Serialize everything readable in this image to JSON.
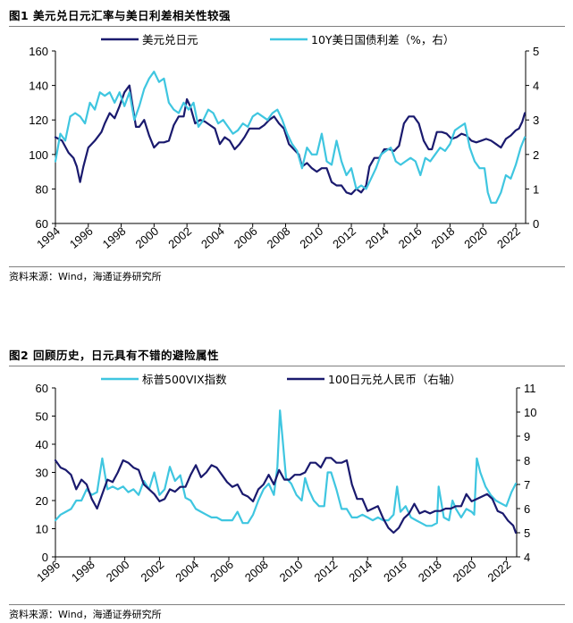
{
  "chart_data": [
    {
      "type": "line",
      "title": "图1  美元兑日元汇率与美日利差相关性较强",
      "source": "资料来源：Wind，海通证券研究所",
      "xlabel": "",
      "x_tick_labels": [
        "1994",
        "1996",
        "1998",
        "2000",
        "2002",
        "2004",
        "2006",
        "2008",
        "2010",
        "2012",
        "2014",
        "2016",
        "2018",
        "2020",
        "2022"
      ],
      "xlim": [
        1994,
        2022.6
      ],
      "y_left": {
        "lim": [
          60,
          160
        ],
        "ticks": [
          60,
          80,
          100,
          120,
          140,
          160
        ]
      },
      "y_right": {
        "lim": [
          0,
          5
        ],
        "ticks": [
          0,
          1,
          2,
          3,
          4,
          5
        ]
      },
      "legend_position": "top",
      "series": [
        {
          "name": "美元兑日元",
          "axis": "left",
          "color": "#1a1a6e",
          "x": [
            1994.0,
            1994.4,
            1994.8,
            1995.1,
            1995.3,
            1995.5,
            1995.7,
            1996.0,
            1996.4,
            1996.8,
            1997.0,
            1997.3,
            1997.6,
            1997.9,
            1998.2,
            1998.5,
            1998.7,
            1998.9,
            1999.1,
            1999.4,
            1999.7,
            2000.0,
            2000.3,
            2000.6,
            2000.9,
            2001.2,
            2001.5,
            2001.8,
            2002.0,
            2002.2,
            2002.5,
            2002.8,
            2003.1,
            2003.4,
            2003.7,
            2004.0,
            2004.3,
            2004.6,
            2004.9,
            2005.2,
            2005.5,
            2005.8,
            2006.1,
            2006.4,
            2006.7,
            2007.0,
            2007.3,
            2007.6,
            2007.9,
            2008.2,
            2008.5,
            2008.8,
            2009.0,
            2009.3,
            2009.6,
            2009.9,
            2010.2,
            2010.5,
            2010.8,
            2011.1,
            2011.4,
            2011.7,
            2012.0,
            2012.3,
            2012.6,
            2012.9,
            2013.1,
            2013.4,
            2013.7,
            2014.0,
            2014.3,
            2014.6,
            2014.9,
            2015.2,
            2015.5,
            2015.8,
            2016.1,
            2016.4,
            2016.7,
            2016.9,
            2017.2,
            2017.5,
            2017.8,
            2018.1,
            2018.4,
            2018.7,
            2019.0,
            2019.3,
            2019.6,
            2019.9,
            2020.2,
            2020.5,
            2020.8,
            2021.1,
            2021.4,
            2021.7,
            2022.0,
            2022.2,
            2022.4,
            2022.55
          ],
          "y": [
            110,
            108,
            101,
            98,
            93,
            84,
            93,
            104,
            108,
            113,
            118,
            124,
            121,
            128,
            136,
            140,
            128,
            116,
            116,
            120,
            111,
            104,
            107,
            107,
            108,
            117,
            122,
            122,
            132,
            128,
            118,
            120,
            119,
            117,
            115,
            106,
            110,
            108,
            103,
            106,
            110,
            115,
            115,
            115,
            117,
            120,
            122,
            118,
            115,
            106,
            103,
            100,
            93,
            95,
            92,
            90,
            92,
            92,
            84,
            82,
            82,
            78,
            77,
            80,
            78,
            82,
            93,
            98,
            98,
            103,
            103,
            102,
            105,
            118,
            122,
            122,
            118,
            108,
            103,
            103,
            113,
            113,
            112,
            109,
            110,
            112,
            111,
            108,
            107,
            108,
            109,
            108,
            106,
            104,
            109,
            111,
            114,
            115,
            119,
            124
          ]
        },
        {
          "name": "10Y美日国债利差（%，右）",
          "axis": "right",
          "color": "#3fc6e0",
          "x": [
            1994.0,
            1994.3,
            1994.6,
            1994.9,
            1995.2,
            1995.5,
            1995.8,
            1996.1,
            1996.4,
            1996.7,
            1997.0,
            1997.3,
            1997.6,
            1997.9,
            1998.2,
            1998.5,
            1998.8,
            1999.1,
            1999.4,
            1999.7,
            2000.0,
            2000.3,
            2000.6,
            2000.9,
            2001.2,
            2001.5,
            2001.8,
            2002.1,
            2002.4,
            2002.7,
            2003.0,
            2003.3,
            2003.6,
            2003.9,
            2004.2,
            2004.5,
            2004.8,
            2005.1,
            2005.4,
            2005.7,
            2006.0,
            2006.3,
            2006.6,
            2006.9,
            2007.2,
            2007.5,
            2007.8,
            2008.1,
            2008.4,
            2008.7,
            2009.0,
            2009.3,
            2009.6,
            2009.9,
            2010.2,
            2010.5,
            2010.8,
            2011.1,
            2011.4,
            2011.7,
            2012.0,
            2012.3,
            2012.6,
            2012.9,
            2013.2,
            2013.5,
            2013.8,
            2014.1,
            2014.4,
            2014.7,
            2015.0,
            2015.3,
            2015.6,
            2015.9,
            2016.2,
            2016.5,
            2016.8,
            2017.1,
            2017.4,
            2017.7,
            2018.0,
            2018.3,
            2018.6,
            2018.9,
            2019.2,
            2019.5,
            2019.8,
            2020.1,
            2020.3,
            2020.5,
            2020.8,
            2021.1,
            2021.4,
            2021.7,
            2022.0,
            2022.3,
            2022.55
          ],
          "y": [
            1.8,
            2.6,
            2.4,
            3.1,
            3.2,
            3.1,
            2.9,
            3.5,
            3.3,
            3.8,
            3.7,
            3.8,
            3.5,
            3.8,
            3.4,
            3.8,
            3.0,
            3.4,
            3.9,
            4.2,
            4.4,
            4.1,
            4.2,
            3.5,
            3.3,
            3.2,
            3.5,
            3.3,
            3.5,
            2.8,
            3.0,
            3.3,
            3.2,
            2.9,
            3.0,
            2.8,
            2.6,
            2.7,
            2.9,
            2.8,
            3.1,
            3.2,
            3.1,
            3.0,
            3.2,
            3.3,
            3.0,
            2.6,
            2.3,
            2.1,
            1.6,
            2.2,
            2.0,
            2.0,
            2.6,
            1.8,
            1.7,
            2.4,
            1.8,
            1.4,
            1.6,
            1.0,
            1.1,
            1.0,
            1.3,
            1.6,
            2.0,
            2.1,
            2.2,
            1.8,
            1.7,
            1.8,
            1.9,
            1.8,
            1.4,
            1.9,
            1.8,
            2.0,
            2.2,
            2.1,
            2.3,
            2.7,
            2.8,
            2.9,
            2.2,
            1.8,
            1.6,
            1.6,
            0.9,
            0.6,
            0.6,
            0.9,
            1.4,
            1.3,
            1.7,
            2.2,
            2.5
          ]
        }
      ]
    },
    {
      "type": "line",
      "title": "图2  回顾历史，日元具有不错的避险属性",
      "source": "资料来源：Wind，海通证券研究所",
      "xlabel": "",
      "x_tick_labels": [
        "1996",
        "1998",
        "2000",
        "2002",
        "2004",
        "2006",
        "2008",
        "2010",
        "2012",
        "2014",
        "2016",
        "2018",
        "2020",
        "2022"
      ],
      "xlim": [
        1996,
        2022.6
      ],
      "y_left": {
        "lim": [
          0,
          60
        ],
        "ticks": [
          0,
          10,
          20,
          30,
          40,
          50,
          60
        ]
      },
      "y_right": {
        "lim": [
          4,
          11
        ],
        "ticks": [
          4,
          5,
          6,
          7,
          8,
          9,
          10,
          11
        ]
      },
      "legend_position": "top",
      "series": [
        {
          "name": "标普500VIX指数",
          "axis": "left",
          "color": "#3fc6e0",
          "x": [
            1996.0,
            1996.3,
            1996.6,
            1996.9,
            1997.2,
            1997.5,
            1997.8,
            1998.1,
            1998.4,
            1998.7,
            1999.0,
            1999.3,
            1999.6,
            1999.9,
            2000.2,
            2000.5,
            2000.8,
            2001.1,
            2001.4,
            2001.7,
            2002.0,
            2002.3,
            2002.6,
            2002.9,
            2003.2,
            2003.5,
            2003.8,
            2004.1,
            2004.4,
            2004.7,
            2005.0,
            2005.3,
            2005.6,
            2005.9,
            2006.2,
            2006.5,
            2006.8,
            2007.1,
            2007.4,
            2007.7,
            2008.0,
            2008.3,
            2008.6,
            2008.8,
            2008.95,
            2009.1,
            2009.3,
            2009.6,
            2009.9,
            2010.2,
            2010.4,
            2010.6,
            2010.9,
            2011.2,
            2011.5,
            2011.7,
            2011.9,
            2012.2,
            2012.5,
            2012.8,
            2013.1,
            2013.4,
            2013.7,
            2014.0,
            2014.3,
            2014.6,
            2014.9,
            2015.2,
            2015.5,
            2015.7,
            2015.9,
            2016.2,
            2016.5,
            2016.8,
            2017.1,
            2017.4,
            2017.7,
            2018.0,
            2018.1,
            2018.4,
            2018.7,
            2018.9,
            2019.1,
            2019.4,
            2019.7,
            2020.0,
            2020.15,
            2020.3,
            2020.5,
            2020.8,
            2021.1,
            2021.4,
            2021.7,
            2022.0,
            2022.3,
            2022.55
          ],
          "y": [
            13,
            15,
            16,
            17,
            20,
            20,
            24,
            22,
            23,
            35,
            24,
            25,
            24,
            25,
            23,
            24,
            22,
            27,
            24,
            30,
            22,
            24,
            32,
            27,
            29,
            21,
            20,
            17,
            16,
            15,
            14,
            14,
            13,
            13,
            13,
            16,
            12,
            12,
            15,
            20,
            24,
            26,
            22,
            32,
            52,
            42,
            28,
            26,
            22,
            20,
            28,
            24,
            20,
            18,
            18,
            30,
            30,
            24,
            17,
            17,
            14,
            14,
            15,
            14,
            13,
            14,
            13,
            13,
            15,
            25,
            16,
            18,
            14,
            13,
            12,
            11,
            11,
            12,
            25,
            14,
            13,
            20,
            17,
            14,
            17,
            16,
            15,
            35,
            30,
            25,
            22,
            20,
            19,
            18,
            23,
            26
          ]
        },
        {
          "name": "100日元兑人民币（右轴）",
          "axis": "right",
          "color": "#1a1a6e",
          "x": [
            1996.0,
            1996.3,
            1996.6,
            1996.9,
            1997.2,
            1997.5,
            1997.8,
            1998.1,
            1998.4,
            1998.7,
            1999.0,
            1999.3,
            1999.6,
            1999.9,
            2000.2,
            2000.5,
            2000.8,
            2001.1,
            2001.4,
            2001.7,
            2002.0,
            2002.3,
            2002.6,
            2002.9,
            2003.2,
            2003.5,
            2003.8,
            2004.1,
            2004.4,
            2004.7,
            2005.0,
            2005.3,
            2005.6,
            2005.9,
            2006.2,
            2006.5,
            2006.8,
            2007.1,
            2007.4,
            2007.7,
            2008.0,
            2008.3,
            2008.6,
            2008.9,
            2009.2,
            2009.5,
            2009.8,
            2010.1,
            2010.4,
            2010.7,
            2011.0,
            2011.3,
            2011.6,
            2011.9,
            2012.2,
            2012.5,
            2012.8,
            2013.1,
            2013.4,
            2013.7,
            2014.0,
            2014.3,
            2014.6,
            2014.9,
            2015.2,
            2015.5,
            2015.8,
            2016.1,
            2016.4,
            2016.7,
            2017.0,
            2017.3,
            2017.6,
            2017.9,
            2018.2,
            2018.5,
            2018.8,
            2019.1,
            2019.4,
            2019.7,
            2020.0,
            2020.3,
            2020.6,
            2020.9,
            2021.2,
            2021.5,
            2021.8,
            2022.1,
            2022.4,
            2022.55
          ],
          "y": [
            8.0,
            7.7,
            7.6,
            7.4,
            6.8,
            7.2,
            7.0,
            6.4,
            6.0,
            6.6,
            7.2,
            7.1,
            7.5,
            8.0,
            7.9,
            7.7,
            7.6,
            7.0,
            6.8,
            6.6,
            6.3,
            6.4,
            6.8,
            6.7,
            6.9,
            6.9,
            7.4,
            7.8,
            7.3,
            7.5,
            7.8,
            7.7,
            7.4,
            7.1,
            6.9,
            7.0,
            6.6,
            6.5,
            6.3,
            6.8,
            7.0,
            7.4,
            7.0,
            7.6,
            7.2,
            7.2,
            7.4,
            7.4,
            7.5,
            7.9,
            7.9,
            7.7,
            8.1,
            8.1,
            7.9,
            7.9,
            8.0,
            7.0,
            6.4,
            6.4,
            5.9,
            6.0,
            6.1,
            5.6,
            5.2,
            5.0,
            5.2,
            5.6,
            5.8,
            6.2,
            5.8,
            5.9,
            5.8,
            5.9,
            5.9,
            6.0,
            6.0,
            6.1,
            6.1,
            6.6,
            6.3,
            6.4,
            6.5,
            6.6,
            6.4,
            5.9,
            5.8,
            5.5,
            5.3,
            5.0
          ]
        }
      ]
    }
  ]
}
